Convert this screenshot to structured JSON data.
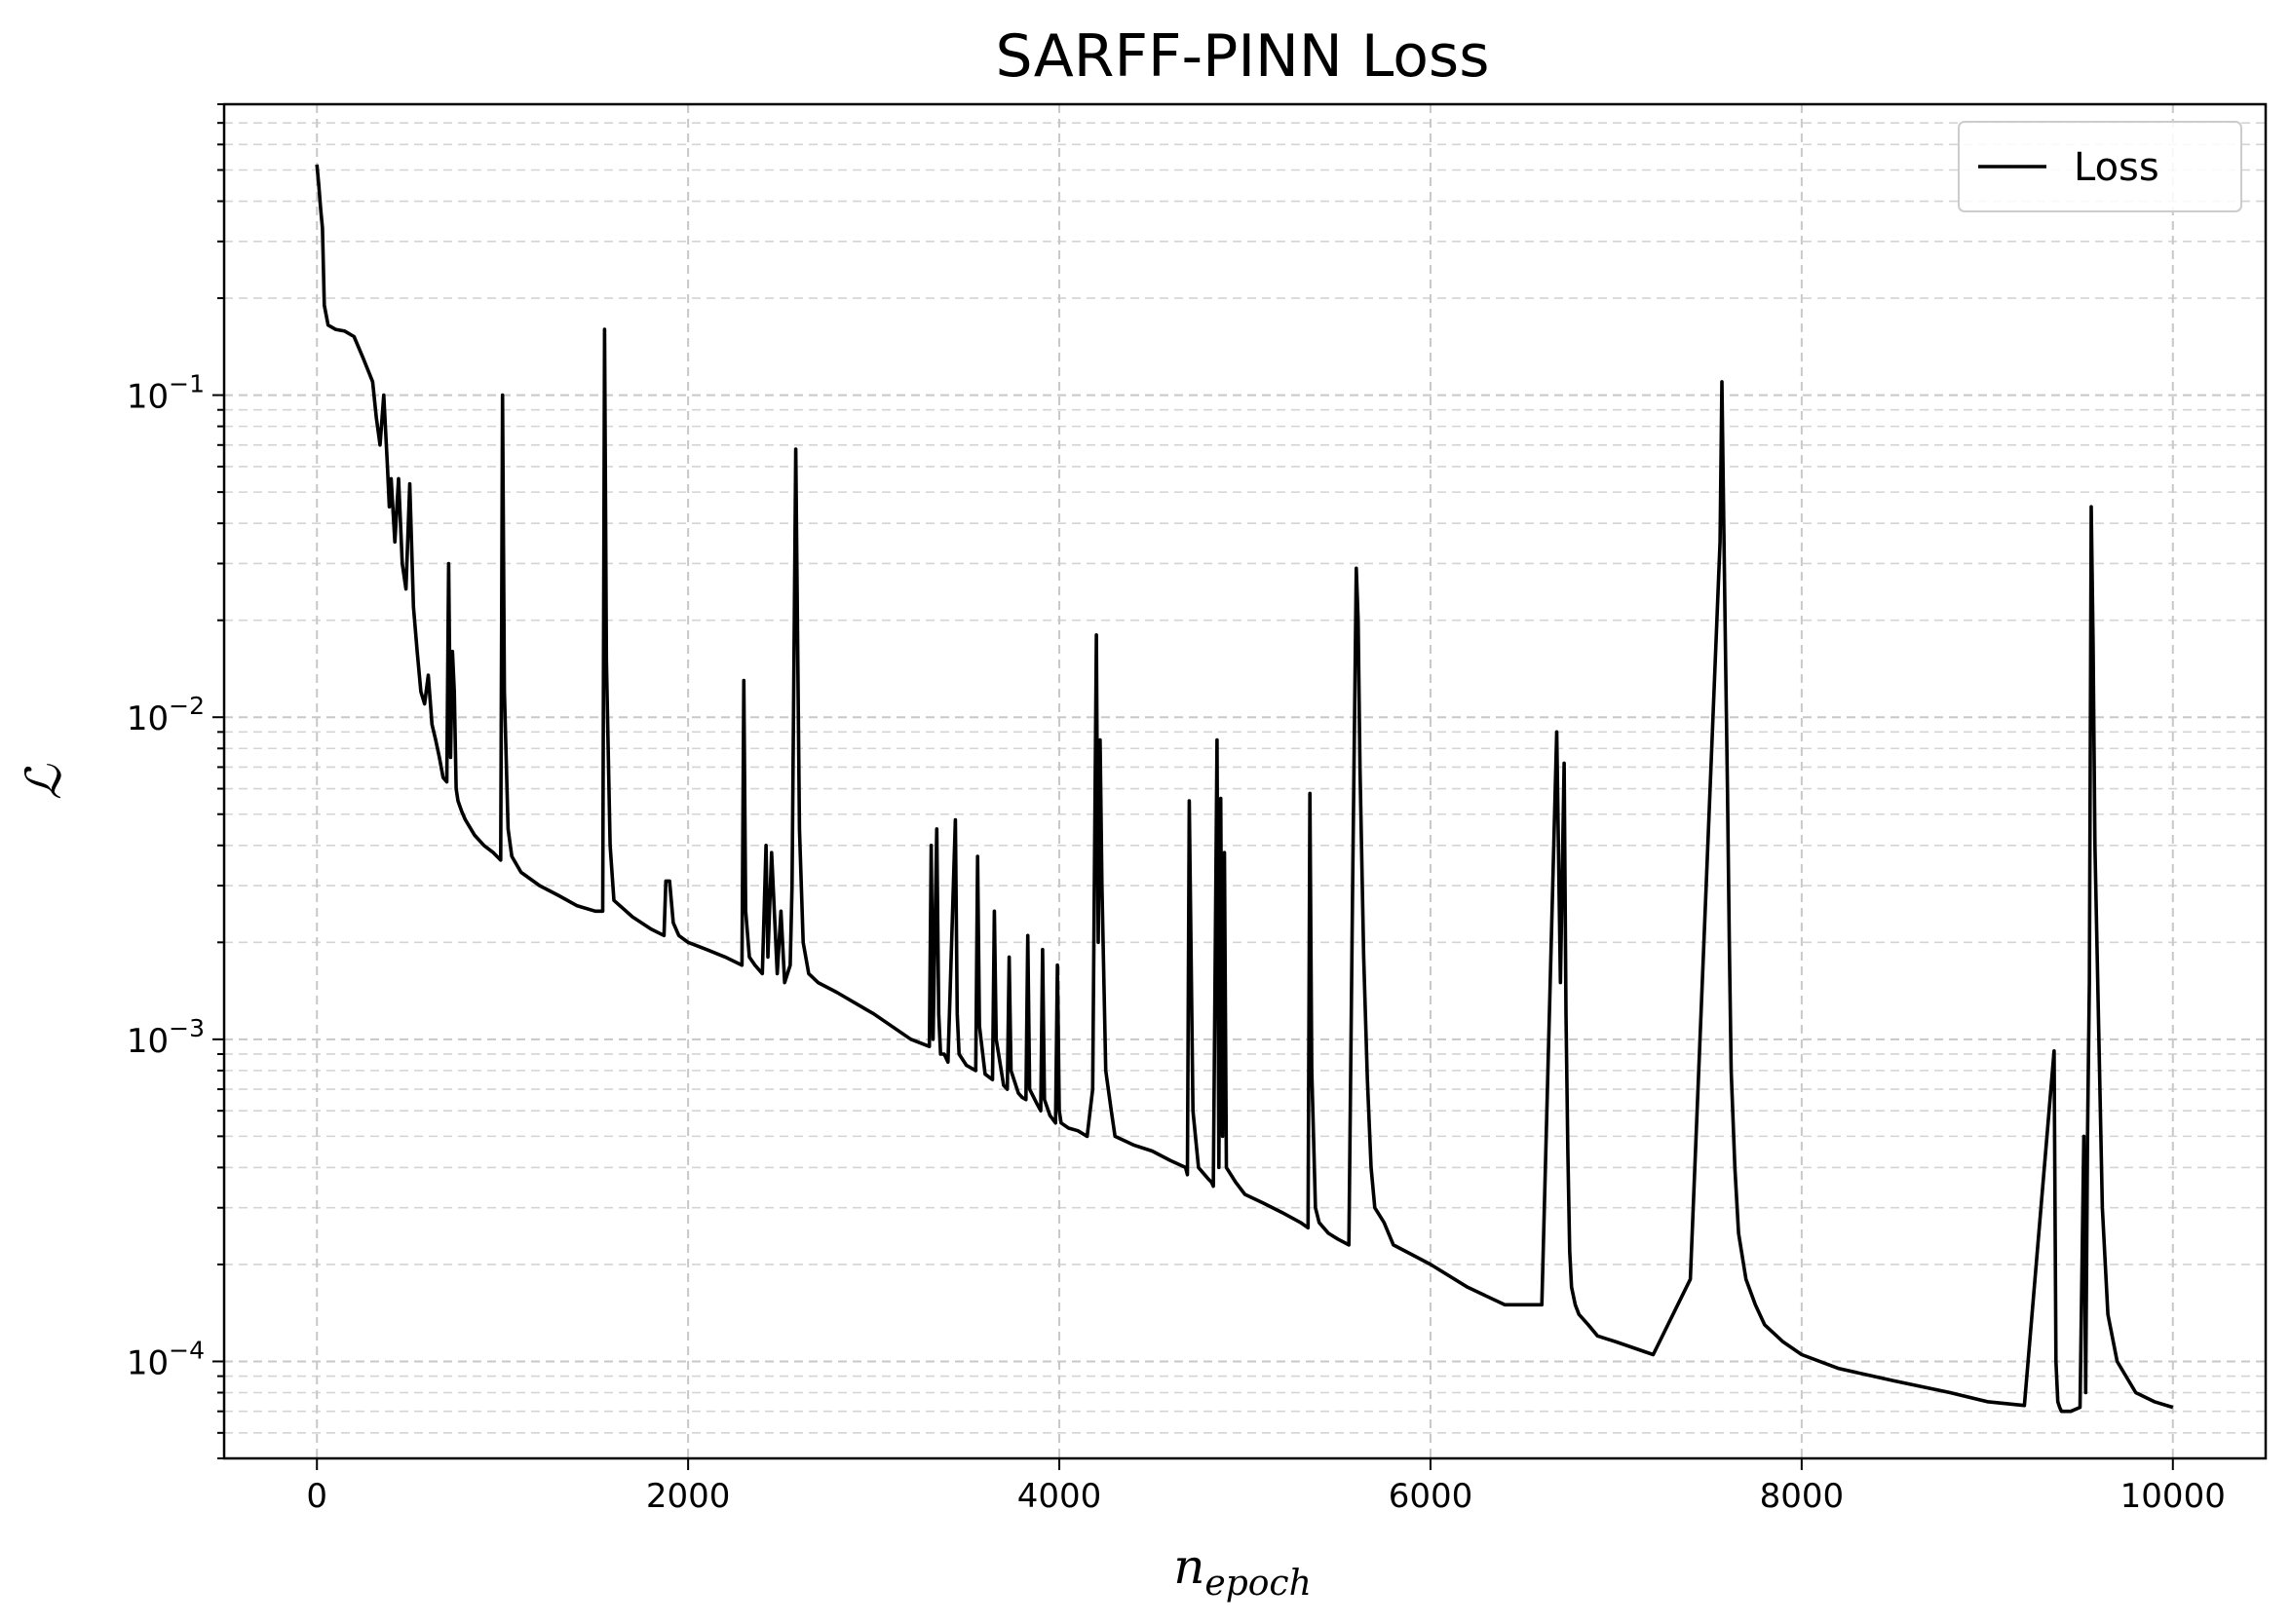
{
  "chart_data": {
    "type": "line",
    "title": "SARFF-PINN Loss",
    "xlabel": "n",
    "xlabel_subscript": "epoch",
    "ylabel": "ℒ",
    "xscale": "linear",
    "yscale": "log",
    "xlim": [
      -500,
      10500
    ],
    "ylim": [
      5e-05,
      0.8
    ],
    "xticks": [
      0,
      2000,
      4000,
      6000,
      8000,
      10000
    ],
    "xtick_labels": [
      "0",
      "2000",
      "4000",
      "6000",
      "8000",
      "10000"
    ],
    "yticks": [
      0.0001,
      0.001,
      0.01,
      0.1
    ],
    "ytick_labels": [
      {
        "base": "10",
        "exp": "−4"
      },
      {
        "base": "10",
        "exp": "−3"
      },
      {
        "base": "10",
        "exp": "−2"
      },
      {
        "base": "10",
        "exp": "−1"
      }
    ],
    "grid": true,
    "legend": {
      "position": "top-right",
      "entries": [
        "Loss"
      ]
    },
    "series": [
      {
        "name": "Loss",
        "color": "#000000",
        "x": [
          0,
          10,
          20,
          30,
          40,
          60,
          100,
          150,
          200,
          250,
          300,
          320,
          340,
          360,
          380,
          390,
          400,
          420,
          440,
          460,
          480,
          500,
          520,
          540,
          560,
          580,
          600,
          620,
          640,
          660,
          680,
          700,
          710,
          720,
          730,
          740,
          750,
          760,
          780,
          800,
          850,
          900,
          950,
          990,
          1000,
          1010,
          1030,
          1050,
          1100,
          1200,
          1300,
          1400,
          1500,
          1540,
          1550,
          1560,
          1580,
          1600,
          1700,
          1800,
          1870,
          1880,
          1900,
          1920,
          1950,
          2000,
          2100,
          2200,
          2290,
          2300,
          2310,
          2330,
          2360,
          2400,
          2420,
          2430,
          2450,
          2480,
          2500,
          2520,
          2550,
          2560,
          2580,
          2600,
          2620,
          2650,
          2700,
          2800,
          3000,
          3200,
          3300,
          3310,
          3320,
          3340,
          3350,
          3360,
          3380,
          3400,
          3440,
          3450,
          3460,
          3500,
          3550,
          3560,
          3570,
          3600,
          3640,
          3650,
          3660,
          3700,
          3720,
          3730,
          3740,
          3780,
          3800,
          3820,
          3830,
          3840,
          3880,
          3900,
          3910,
          3920,
          3950,
          3980,
          3990,
          4000,
          4010,
          4050,
          4100,
          4150,
          4180,
          4200,
          4210,
          4220,
          4230,
          4250,
          4280,
          4300,
          4400,
          4500,
          4600,
          4680,
          4690,
          4700,
          4720,
          4750,
          4800,
          4820,
          4830,
          4850,
          4860,
          4870,
          4880,
          4890,
          4900,
          4950,
          5000,
          5100,
          5200,
          5300,
          5340,
          5350,
          5360,
          5380,
          5400,
          5450,
          5500,
          5560,
          5580,
          5600,
          5610,
          5620,
          5640,
          5660,
          5680,
          5700,
          5750,
          5800,
          6000,
          6200,
          6400,
          6600,
          6680,
          6700,
          6720,
          6730,
          6740,
          6750,
          6760,
          6780,
          6800,
          6850,
          6900,
          7000,
          7200,
          7400,
          7560,
          7570,
          7580,
          7590,
          7600,
          7610,
          7620,
          7640,
          7660,
          7700,
          7750,
          7800,
          7900,
          8000,
          8200,
          8500,
          8800,
          9000,
          9200,
          9360,
          9370,
          9380,
          9390,
          9400,
          9450,
          9500,
          9520,
          9530,
          9540,
          9550,
          9560,
          9570,
          9580,
          9600,
          9620,
          9650,
          9700,
          9800,
          9900,
          10000
        ],
        "y": [
          0.52,
          0.45,
          0.38,
          0.33,
          0.19,
          0.165,
          0.16,
          0.158,
          0.152,
          0.13,
          0.11,
          0.085,
          0.07,
          0.1,
          0.06,
          0.045,
          0.055,
          0.035,
          0.055,
          0.03,
          0.025,
          0.053,
          0.022,
          0.016,
          0.012,
          0.011,
          0.0135,
          0.0095,
          0.0085,
          0.0075,
          0.0065,
          0.0063,
          0.03,
          0.0075,
          0.016,
          0.012,
          0.006,
          0.0055,
          0.0051,
          0.0048,
          0.0043,
          0.004,
          0.0038,
          0.0036,
          0.1,
          0.012,
          0.0045,
          0.0037,
          0.0033,
          0.003,
          0.0028,
          0.0026,
          0.0025,
          0.0025,
          0.16,
          0.015,
          0.004,
          0.0027,
          0.0024,
          0.0022,
          0.0021,
          0.0031,
          0.0031,
          0.0023,
          0.0021,
          0.002,
          0.0019,
          0.0018,
          0.0017,
          0.013,
          0.0025,
          0.0018,
          0.0017,
          0.0016,
          0.004,
          0.0018,
          0.0038,
          0.0016,
          0.0025,
          0.0015,
          0.0017,
          0.003,
          0.068,
          0.0045,
          0.002,
          0.0016,
          0.0015,
          0.0014,
          0.0012,
          0.001,
          0.00095,
          0.004,
          0.001,
          0.0045,
          0.0012,
          0.0009,
          0.0009,
          0.00085,
          0.0048,
          0.0012,
          0.0009,
          0.00083,
          0.0008,
          0.0037,
          0.0011,
          0.00078,
          0.00075,
          0.0025,
          0.001,
          0.00072,
          0.0007,
          0.0018,
          0.0008,
          0.00068,
          0.00066,
          0.00065,
          0.0021,
          0.0007,
          0.00063,
          0.0006,
          0.0019,
          0.00065,
          0.00058,
          0.00055,
          0.0017,
          0.0006,
          0.00055,
          0.00053,
          0.00052,
          0.0005,
          0.0007,
          0.018,
          0.002,
          0.0085,
          0.003,
          0.0008,
          0.0006,
          0.0005,
          0.00047,
          0.00045,
          0.00042,
          0.0004,
          0.00038,
          0.0055,
          0.0006,
          0.0004,
          0.00037,
          0.00036,
          0.00035,
          0.0085,
          0.0004,
          0.0056,
          0.0005,
          0.0038,
          0.0004,
          0.00036,
          0.00033,
          0.00031,
          0.00029,
          0.00027,
          0.00026,
          0.0058,
          0.0008,
          0.0003,
          0.00027,
          0.00025,
          0.00024,
          0.00023,
          0.0029,
          0.029,
          0.02,
          0.007,
          0.0018,
          0.00075,
          0.0004,
          0.0003,
          0.00027,
          0.00023,
          0.0002,
          0.00017,
          0.00015,
          0.00015,
          0.009,
          0.0015,
          0.0072,
          0.0012,
          0.00045,
          0.00022,
          0.00017,
          0.00015,
          0.00014,
          0.00013,
          0.00012,
          0.000115,
          0.000105,
          0.00018,
          0.035,
          0.11,
          0.04,
          0.015,
          0.006,
          0.002,
          0.0008,
          0.0004,
          0.00025,
          0.00018,
          0.00015,
          0.00013,
          0.000115,
          0.000105,
          9.5e-05,
          8.7e-05,
          8e-05,
          7.5e-05,
          7.3e-05,
          0.00092,
          0.0001,
          7.5e-05,
          7.2e-05,
          7e-05,
          7e-05,
          7.2e-05,
          0.0005,
          8e-05,
          0.0005,
          0.0015,
          0.045,
          0.017,
          0.004,
          0.0011,
          0.0003,
          0.00014,
          0.0001,
          8e-05,
          7.5e-05,
          7.2e-05
        ]
      }
    ]
  }
}
